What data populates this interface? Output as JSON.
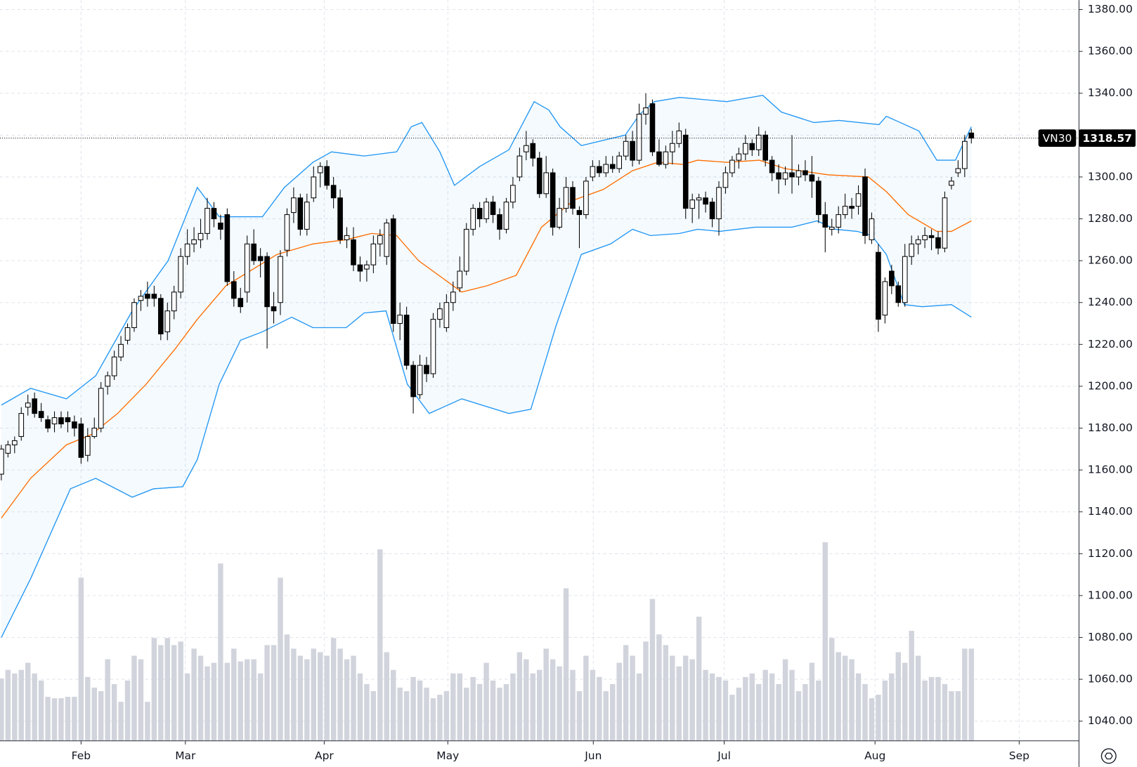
{
  "chart_data": {
    "type": "candlestick",
    "symbol": "VN30",
    "open": [
      1158,
      1168,
      1172,
      1176,
      1190,
      1194,
      1188,
      1184,
      1182,
      1185,
      1185,
      1183,
      1182,
      1167,
      1176,
      1180,
      1200,
      1205,
      1214,
      1222,
      1228,
      1241,
      1244,
      1244,
      1242,
      1226,
      1236,
      1245,
      1262,
      1268,
      1270,
      1273,
      1285,
      1278,
      1282,
      1250,
      1242,
      1245,
      1268,
      1262,
      1262,
      1238,
      1240,
      1265,
      1283,
      1290,
      1275,
      1290,
      1302,
      1305,
      1296,
      1290,
      1270,
      1270,
      1258,
      1256,
      1258,
      1268,
      1262,
      1280,
      1230,
      1234,
      1210,
      1196,
      1210,
      1206,
      1232,
      1228,
      1240,
      1247,
      1255,
      1275,
      1285,
      1280,
      1288,
      1282,
      1275,
      1288,
      1300,
      1312,
      1316,
      1309,
      1292,
      1302,
      1276,
      1285,
      1295,
      1284,
      1282,
      1300,
      1305,
      1302,
      1306,
      1304,
      1310,
      1317,
      1308,
      1330,
      1335,
      1312,
      1306,
      1312,
      1316,
      1320,
      1285,
      1289,
      1290,
      1288,
      1280,
      1295,
      1302,
      1308,
      1311,
      1316,
      1313,
      1320,
      1308,
      1302,
      1299,
      1302,
      1300,
      1303,
      1301,
      1298,
      1282,
      1275,
      1276,
      1282,
      1286,
      1286,
      1300,
      1270,
      1264,
      1234,
      1255,
      1248,
      1240,
      1262,
      1268,
      1270,
      1272,
      1271,
      1266,
      1296,
      1302,
      1304,
      1321
    ],
    "high": [
      1172,
      1174,
      1176,
      1190,
      1196,
      1197,
      1192,
      1186,
      1188,
      1188,
      1188,
      1186,
      1185,
      1180,
      1185,
      1202,
      1207,
      1217,
      1224,
      1230,
      1242,
      1246,
      1250,
      1248,
      1244,
      1240,
      1248,
      1266,
      1275,
      1276,
      1280,
      1290,
      1288,
      1282,
      1285,
      1255,
      1247,
      1272,
      1275,
      1266,
      1264,
      1245,
      1265,
      1285,
      1295,
      1292,
      1292,
      1305,
      1307,
      1308,
      1300,
      1294,
      1276,
      1276,
      1262,
      1260,
      1272,
      1275,
      1280,
      1282,
      1240,
      1238,
      1212,
      1215,
      1214,
      1235,
      1240,
      1244,
      1250,
      1262,
      1278,
      1287,
      1288,
      1290,
      1291,
      1285,
      1290,
      1300,
      1314,
      1322,
      1318,
      1312,
      1310,
      1304,
      1290,
      1300,
      1298,
      1286,
      1300,
      1308,
      1308,
      1310,
      1310,
      1312,
      1320,
      1322,
      1335,
      1340,
      1337,
      1318,
      1315,
      1322,
      1326,
      1323,
      1292,
      1292,
      1293,
      1290,
      1298,
      1305,
      1310,
      1314,
      1320,
      1318,
      1324,
      1322,
      1310,
      1306,
      1305,
      1320,
      1306,
      1308,
      1310,
      1300,
      1288,
      1280,
      1286,
      1292,
      1290,
      1296,
      1304,
      1283,
      1268,
      1252,
      1258,
      1250,
      1268,
      1272,
      1272,
      1276,
      1275,
      1274,
      1293,
      1300,
      1308,
      1320,
      1323
    ],
    "low": [
      1155,
      1166,
      1168,
      1174,
      1186,
      1185,
      1183,
      1178,
      1178,
      1180,
      1178,
      1176,
      1163,
      1164,
      1175,
      1178,
      1196,
      1203,
      1212,
      1220,
      1226,
      1236,
      1238,
      1238,
      1222,
      1222,
      1232,
      1242,
      1258,
      1264,
      1266,
      1270,
      1276,
      1270,
      1248,
      1238,
      1235,
      1240,
      1258,
      1252,
      1218,
      1230,
      1234,
      1262,
      1278,
      1272,
      1272,
      1288,
      1295,
      1294,
      1285,
      1268,
      1266,
      1255,
      1250,
      1250,
      1254,
      1262,
      1258,
      1226,
      1222,
      1208,
      1187,
      1194,
      1202,
      1204,
      1228,
      1226,
      1236,
      1245,
      1253,
      1272,
      1276,
      1278,
      1278,
      1270,
      1273,
      1285,
      1298,
      1308,
      1305,
      1290,
      1290,
      1272,
      1275,
      1283,
      1282,
      1266,
      1280,
      1298,
      1300,
      1300,
      1302,
      1302,
      1308,
      1305,
      1306,
      1325,
      1310,
      1305,
      1304,
      1306,
      1314,
      1280,
      1278,
      1280,
      1283,
      1276,
      1272,
      1292,
      1300,
      1304,
      1308,
      1310,
      1310,
      1305,
      1298,
      1292,
      1296,
      1292,
      1296,
      1298,
      1290,
      1278,
      1264,
      1272,
      1273,
      1280,
      1280,
      1282,
      1268,
      1268,
      1226,
      1230,
      1244,
      1238,
      1238,
      1258,
      1263,
      1266,
      1265,
      1263,
      1264,
      1294,
      1300,
      1300,
      1316
    ],
    "close": [
      1170,
      1172,
      1174,
      1187,
      1192,
      1187,
      1185,
      1180,
      1185,
      1182,
      1183,
      1180,
      1166,
      1176,
      1180,
      1199,
      1205,
      1214,
      1220,
      1228,
      1240,
      1243,
      1242,
      1242,
      1225,
      1236,
      1245,
      1262,
      1268,
      1270,
      1273,
      1285,
      1280,
      1275,
      1250,
      1242,
      1238,
      1268,
      1260,
      1260,
      1238,
      1236,
      1262,
      1282,
      1290,
      1275,
      1288,
      1300,
      1305,
      1296,
      1290,
      1270,
      1272,
      1258,
      1255,
      1258,
      1268,
      1272,
      1278,
      1230,
      1234,
      1210,
      1195,
      1210,
      1206,
      1232,
      1237,
      1240,
      1245,
      1255,
      1275,
      1285,
      1280,
      1288,
      1282,
      1275,
      1288,
      1296,
      1310,
      1315,
      1309,
      1292,
      1302,
      1276,
      1285,
      1295,
      1285,
      1282,
      1298,
      1305,
      1302,
      1306,
      1304,
      1310,
      1317,
      1308,
      1330,
      1333,
      1312,
      1306,
      1312,
      1316,
      1322,
      1285,
      1289,
      1290,
      1287,
      1280,
      1295,
      1302,
      1308,
      1311,
      1316,
      1313,
      1320,
      1308,
      1302,
      1299,
      1302,
      1300,
      1303,
      1301,
      1298,
      1282,
      1276,
      1276,
      1282,
      1286,
      1285,
      1292,
      1272,
      1280,
      1232,
      1250,
      1248,
      1240,
      1262,
      1268,
      1270,
      1272,
      1271,
      1266,
      1290,
      1298,
      1304,
      1317,
      1318.57
    ],
    "volume": [
      88,
      100,
      95,
      100,
      110,
      95,
      85,
      62,
      60,
      60,
      62,
      62,
      230,
      90,
      75,
      70,
      115,
      80,
      55,
      85,
      120,
      115,
      55,
      145,
      135,
      145,
      135,
      140,
      95,
      130,
      120,
      105,
      110,
      250,
      110,
      130,
      112,
      115,
      115,
      95,
      135,
      135,
      230,
      150,
      130,
      120,
      115,
      130,
      125,
      120,
      145,
      130,
      115,
      120,
      95,
      80,
      70,
      270,
      125,
      100,
      75,
      70,
      90,
      85,
      75,
      60,
      65,
      70,
      95,
      95,
      75,
      90,
      80,
      110,
      85,
      75,
      80,
      95,
      125,
      115,
      95,
      100,
      130,
      115,
      105,
      215,
      100,
      70,
      120,
      100,
      90,
      70,
      80,
      110,
      135,
      120,
      95,
      140,
      200,
      150,
      135,
      120,
      105,
      120,
      115,
      175,
      100,
      95,
      90,
      85,
      65,
      75,
      90,
      95,
      80,
      100,
      95,
      80,
      115,
      100,
      70,
      80,
      110,
      85,
      280,
      145,
      125,
      120,
      115,
      95,
      80,
      60,
      65,
      85,
      95,
      125,
      110,
      155,
      120,
      85,
      90,
      90,
      80,
      70,
      70,
      130,
      130
    ],
    "up_color": "#ffffff",
    "down_color": "#000000",
    "volume_color": "#d1d4dc",
    "band_fill": "#2196f3",
    "overlays": [
      {
        "color": "#2196f3",
        "x": [
          0,
          4.4,
          9.8,
          14.2,
          19.7,
          25.1,
          29.5,
          32.8,
          39.3,
          42.6,
          46.9,
          49.7,
          54.6,
          59.5,
          61.7,
          63.3,
          66,
          68.2,
          72,
          76.4,
          80.2,
          82.4,
          84.1,
          87.3,
          93.9,
          96.1,
          98.3,
          102.1,
          109.2,
          114.6,
          117.4,
          122.3,
          126.1,
          132.1,
          133.2,
          138.1,
          140.8,
          143.6,
          146
        ],
        "values": [
          1191,
          1199,
          1194,
          1205,
          1236,
          1260,
          1295,
          1281,
          1281,
          1295,
          1307,
          1312,
          1310,
          1312,
          1324,
          1326,
          1312,
          1296,
          1305,
          1313,
          1336,
          1332,
          1324,
          1315,
          1320,
          1330,
          1336,
          1338,
          1336,
          1339,
          1331,
          1326,
          1327,
          1325,
          1329,
          1322,
          1308,
          1308,
          1324
        ]
      },
      {
        "color": "#ff6d00",
        "x": [
          0,
          4.4,
          9.8,
          13.6,
          17.5,
          21.8,
          26.2,
          29.5,
          33.8,
          41.5,
          46.9,
          51.9,
          55.7,
          59.5,
          62.8,
          69.3,
          73.1,
          77.5,
          81.3,
          86.2,
          90.6,
          95,
          98.8,
          102.6,
          104.8,
          109.2,
          114.1,
          117.9,
          124.5,
          130.5,
          133.2,
          136.5,
          140.8,
          143,
          146
        ],
        "values": [
          1137,
          1156,
          1172,
          1177,
          1187,
          1201,
          1218,
          1232,
          1248,
          1263,
          1268,
          1270,
          1273,
          1272,
          1260,
          1245,
          1248,
          1253,
          1276,
          1289,
          1294,
          1303,
          1307,
          1306,
          1308,
          1307,
          1308,
          1304,
          1301,
          1300,
          1293,
          1282,
          1274,
          1274,
          1279
        ]
      },
      {
        "color": "#2196f3",
        "x": [
          0,
          4.4,
          10.4,
          14.2,
          19.7,
          22.9,
          27.3,
          29.5,
          32.8,
          36,
          39.3,
          43.7,
          46.9,
          51.9,
          54.6,
          57.9,
          61.1,
          64.4,
          69.3,
          76.4,
          79.7,
          83.5,
          87.3,
          91.7,
          95,
          97.7,
          102.1,
          104.8,
          108.1,
          113.5,
          119,
          122.8,
          125.5,
          128.8,
          131,
          133.2,
          135.9,
          138.6,
          143,
          146
        ],
        "values": [
          1080,
          1108,
          1151,
          1156,
          1147,
          1151,
          1152,
          1165,
          1201,
          1222,
          1226,
          1233,
          1228,
          1228,
          1235,
          1236,
          1201,
          1187,
          1194,
          1187,
          1189,
          1229,
          1263,
          1268,
          1275,
          1272,
          1273,
          1275,
          1274,
          1276,
          1276,
          1279,
          1275,
          1274,
          1272,
          1263,
          1239,
          1238,
          1239,
          1233
        ]
      }
    ],
    "xlim": [
      -0.2,
      162.2
    ],
    "xticks": [
      {
        "value": 12,
        "label": "Feb"
      },
      {
        "value": 27.7,
        "label": "Mar"
      },
      {
        "value": 48.6,
        "label": "Apr"
      },
      {
        "value": 67.2,
        "label": "May"
      },
      {
        "value": 89.1,
        "label": "Jun"
      },
      {
        "value": 108.8,
        "label": "Jul"
      },
      {
        "value": 131.5,
        "label": "Aug"
      },
      {
        "value": 153.2,
        "label": "Sep"
      }
    ],
    "ylim": [
      1030.6,
      1384.5
    ],
    "yticks": [
      {
        "value": 1040,
        "label": "1040.00"
      },
      {
        "value": 1060,
        "label": "1060.00"
      },
      {
        "value": 1080,
        "label": "1080.00"
      },
      {
        "value": 1100,
        "label": "1100.00"
      },
      {
        "value": 1120,
        "label": "1120.00"
      },
      {
        "value": 1140,
        "label": "1140.00"
      },
      {
        "value": 1160,
        "label": "1160.00"
      },
      {
        "value": 1180,
        "label": "1180.00"
      },
      {
        "value": 1200,
        "label": "1200.00"
      },
      {
        "value": 1220,
        "label": "1220.00"
      },
      {
        "value": 1240,
        "label": "1240.00"
      },
      {
        "value": 1260,
        "label": "1260.00"
      },
      {
        "value": 1280,
        "label": "1280.00"
      },
      {
        "value": 1300,
        "label": "1300.00"
      },
      {
        "value": 1320,
        "label": "1320.00"
      },
      {
        "value": 1340,
        "label": "1340.00"
      },
      {
        "value": 1360,
        "label": "1360.00"
      },
      {
        "value": 1380,
        "label": "1380.00"
      }
    ],
    "grid": true
  }
}
